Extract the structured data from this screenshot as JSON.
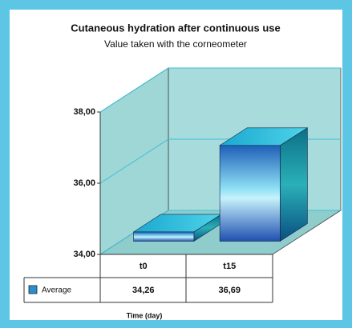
{
  "chart_data": {
    "type": "bar3d",
    "title": "Cutaneous hydration after continuous use",
    "subtitle": "Value taken with the corneometer",
    "x_label": "Time (day)",
    "categories": [
      "t0",
      "t15"
    ],
    "series": [
      {
        "name": "Average",
        "color": "#2a8fd0",
        "values": [
          34.26,
          36.69
        ],
        "value_labels": [
          "34,26",
          "36,69"
        ]
      }
    ],
    "ylim": [
      34,
      38
    ],
    "yticks": [
      {
        "value": 34,
        "label": "34,00"
      },
      {
        "value": 36,
        "label": "36,00"
      },
      {
        "value": 38,
        "label": "38,00"
      }
    ],
    "grid": true
  }
}
